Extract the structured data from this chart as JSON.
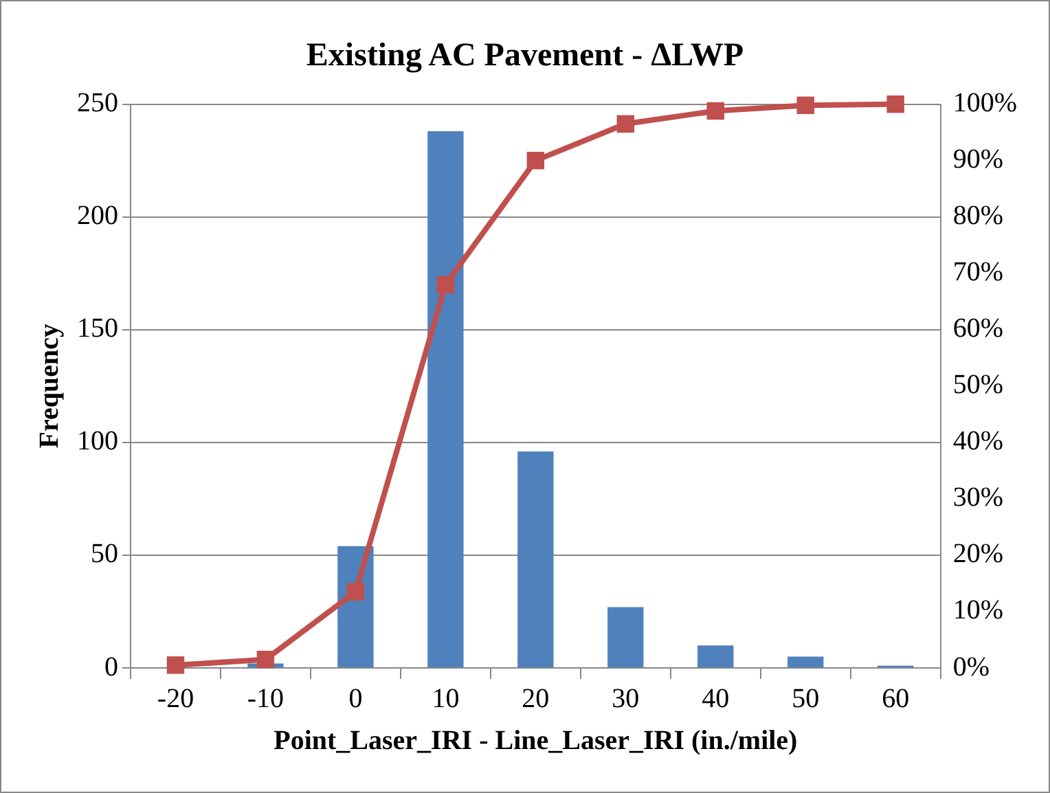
{
  "chart_data": {
    "type": "bar",
    "title": "Existing AC Pavement - ΔLWP",
    "xlabel": "Point_Laser_IRI - Line_Laser_IRI (in./mile)",
    "ylabel": "Frequency",
    "categories": [
      "-20",
      "-10",
      "0",
      "10",
      "20",
      "30",
      "40",
      "50",
      "60"
    ],
    "series": [
      {
        "color": "#4f81bd",
        "values": [
          0,
          2,
          54,
          238,
          96,
          27,
          10,
          5,
          1
        ]
      },
      {
        "type": "line",
        "axis": "y2",
        "color": "#c0504d",
        "marker": "square",
        "values": [
          0.5,
          1.5,
          13.5,
          68,
          90,
          96.5,
          98.8,
          99.8,
          100
        ]
      }
    ],
    "ylim": [
      0,
      250
    ],
    "yticks": [
      0,
      50,
      100,
      150,
      200,
      250
    ],
    "y2lim": [
      0,
      100
    ],
    "y2ticks": [
      {
        "value": 0,
        "label": "0%"
      },
      {
        "value": 10,
        "label": "10%"
      },
      {
        "value": 20,
        "label": "20%"
      },
      {
        "value": 30,
        "label": "30%"
      },
      {
        "value": 40,
        "label": "40%"
      },
      {
        "value": 50,
        "label": "50%"
      },
      {
        "value": 60,
        "label": "60%"
      },
      {
        "value": 70,
        "label": "70%"
      },
      {
        "value": 80,
        "label": "80%"
      },
      {
        "value": 90,
        "label": "90%"
      },
      {
        "value": 100,
        "label": "100%"
      }
    ],
    "grid": "y",
    "legend": false
  }
}
